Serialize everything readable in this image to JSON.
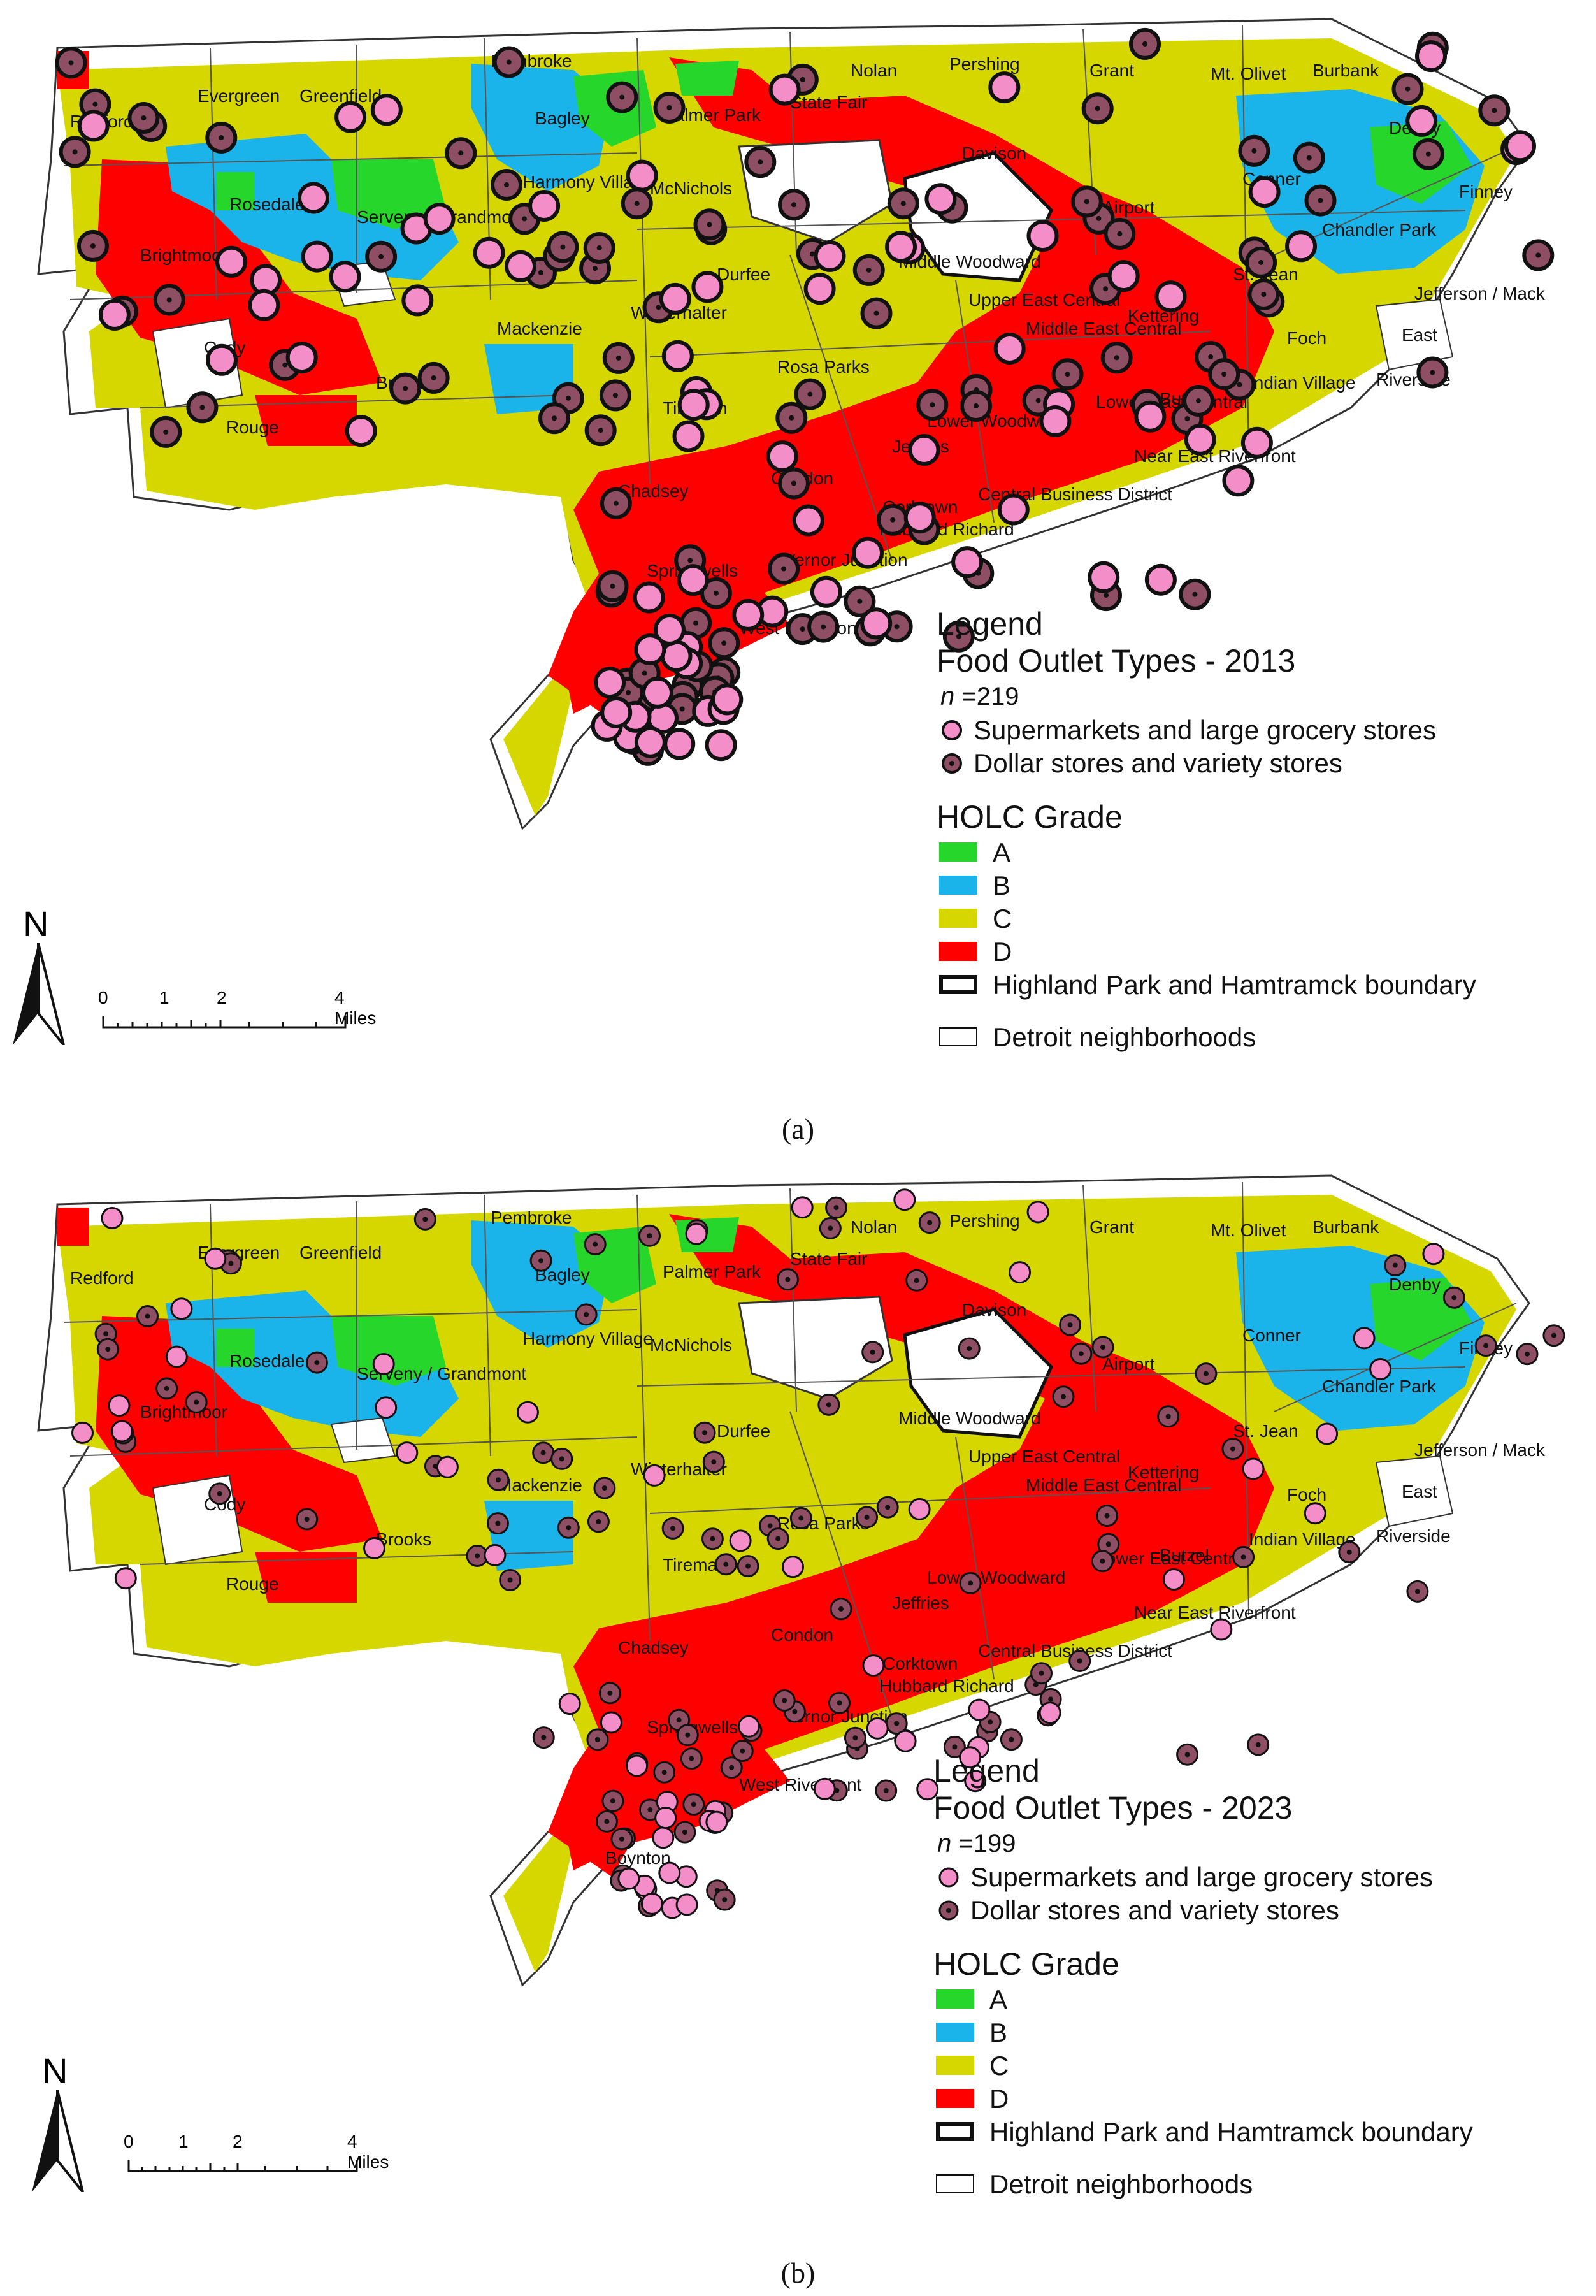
{
  "panels": [
    {
      "caption": "(a)",
      "legend": {
        "title": "Legend",
        "subtitle": "Food Outlet Types - 2013",
        "n_label": "n",
        "n_value": "=219",
        "supermarket_label": "Supermarkets and large grocery stores",
        "dollar_label": "Dollar stores and variety stores",
        "holc_title": "HOLC Grade",
        "grade_a": "A",
        "grade_b": "B",
        "grade_c": "C",
        "grade_d": "D",
        "boundary_label": "Highland Park and Hamtramck boundary",
        "neighborhoods_label": "Detroit neighborhoods"
      },
      "north": "N",
      "scale": {
        "t0": "0",
        "t1": "1",
        "t2": "2",
        "t4": "4 Miles"
      }
    },
    {
      "caption": "(b)",
      "legend": {
        "title": "Legend",
        "subtitle": "Food Outlet Types - 2023",
        "n_label": "n",
        "n_value": "=199",
        "supermarket_label": "Supermarkets and large grocery stores",
        "dollar_label": "Dollar stores and variety stores",
        "holc_title": "HOLC Grade",
        "grade_a": "A",
        "grade_b": "B",
        "grade_c": "C",
        "grade_d": "D",
        "boundary_label": "Highland Park and Hamtramck boundary",
        "neighborhoods_label": "Detroit neighborhoods"
      },
      "north": "N",
      "scale": {
        "t0": "0",
        "t1": "1",
        "t2": "2",
        "t4": "4 Miles"
      }
    }
  ],
  "neighborhoods": [
    "Redford",
    "Evergreen",
    "Greenfield",
    "Pembroke",
    "Bagley",
    "Palmer Park",
    "State Fair",
    "Nolan",
    "Pershing",
    "Grant",
    "Mt. Olivet",
    "Burbank",
    "Denby",
    "Rosedale",
    "Harmony Village",
    "McNichols",
    "Davison",
    "Conner",
    "Finney",
    "Brightmoor",
    "Serveny / Grandmont",
    "Airport",
    "Chandler Park",
    "Durfee",
    "Middle Woodward",
    "St. Jean",
    "Jefferson / Mack",
    "Cody",
    "Winterhalter",
    "Upper East Central",
    "Kettering",
    "Mackenzie",
    "Middle East Central",
    "East",
    "Foch",
    "Brooks",
    "Rosa Parks",
    "Lower East Central",
    "Butzel",
    "Indian Village",
    "Riverside",
    "Tireman",
    "Lower Woodward",
    "Jeffries",
    "Rouge",
    "Near East Riverfront",
    "Condon",
    "Chadsey",
    "Central Business District",
    "Corktown",
    "Hubbard Richard",
    "Vernor Junction",
    "Springwells",
    "West Riverfront",
    "Boynton"
  ],
  "colors": {
    "grade_a": "#27d62b",
    "grade_b": "#1ab4ea",
    "grade_c": "#d7d700",
    "grade_d": "#ff0000",
    "supermarket_fill": "#f48ec8",
    "dollar_fill": "#8e4e63",
    "dot_outline": "#111111"
  },
  "icons": {
    "north_arrow": "north-arrow-icon"
  }
}
